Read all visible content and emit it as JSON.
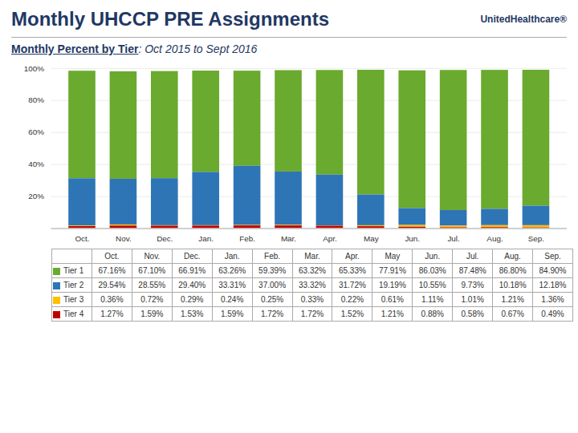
{
  "chart_data": {
    "type": "bar",
    "stacked": true,
    "title": "Monthly UHCCP PRE Assignments",
    "subtitle": "Monthly Percent by Tier: Oct 2015 to Sept 2016",
    "annotations": [
      "UnitedHealthcare®"
    ],
    "categories": [
      "Oct.",
      "Nov.",
      "Dec.",
      "Jan.",
      "Feb.",
      "Mar.",
      "Apr.",
      "May",
      "Jun.",
      "Jul.",
      "Aug.",
      "Sep."
    ],
    "series": [
      {
        "name": "Tier 1",
        "color": "#6aaa2e",
        "values": [
          67.16,
          67.1,
          66.91,
          63.26,
          59.39,
          63.32,
          65.33,
          77.91,
          86.03,
          87.48,
          86.8,
          84.9
        ],
        "value_labels": [
          "67.16%",
          "67.10%",
          "66.91%",
          "63.26%",
          "59.39%",
          "63.32%",
          "65.33%",
          "77.91%",
          "86.03%",
          "87.48%",
          "86.80%",
          "84.90%"
        ]
      },
      {
        "name": "Tier 2",
        "color": "#2e75b6",
        "values": [
          29.54,
          28.55,
          29.4,
          33.31,
          37.0,
          33.32,
          31.72,
          19.19,
          10.55,
          9.73,
          10.18,
          12.18
        ],
        "value_labels": [
          "29.54%",
          "28.55%",
          "29.40%",
          "33.31%",
          "37.00%",
          "33.32%",
          "31.72%",
          "19.19%",
          "10.55%",
          "9.73%",
          "10.18%",
          "12.18%"
        ]
      },
      {
        "name": "Tier 3",
        "color": "#ffc000",
        "values": [
          0.36,
          0.72,
          0.29,
          0.24,
          0.25,
          0.33,
          0.22,
          0.61,
          1.11,
          1.01,
          1.21,
          1.36
        ],
        "value_labels": [
          "0.36%",
          "0.72%",
          "0.29%",
          "0.24%",
          "0.25%",
          "0.33%",
          "0.22%",
          "0.61%",
          "1.11%",
          "1.01%",
          "1.21%",
          "1.36%"
        ]
      },
      {
        "name": "Tier 4",
        "color": "#c00000",
        "values": [
          1.27,
          1.59,
          1.53,
          1.59,
          1.72,
          1.72,
          1.52,
          1.21,
          0.88,
          0.58,
          0.67,
          0.49
        ],
        "value_labels": [
          "1.27%",
          "1.59%",
          "1.53%",
          "1.59%",
          "1.72%",
          "1.72%",
          "1.52%",
          "1.21%",
          "0.88%",
          "0.58%",
          "0.67%",
          "0.49%"
        ]
      }
    ],
    "ylim": [
      0,
      100
    ],
    "yticks": [
      {
        "value": 0,
        "label": null
      },
      {
        "value": 20,
        "label": "20%"
      },
      {
        "value": 40,
        "label": "40%"
      },
      {
        "value": 60,
        "label": "60%"
      },
      {
        "value": 80,
        "label": "80%"
      },
      {
        "value": 100,
        "label": "100%"
      }
    ],
    "grid": true
  }
}
